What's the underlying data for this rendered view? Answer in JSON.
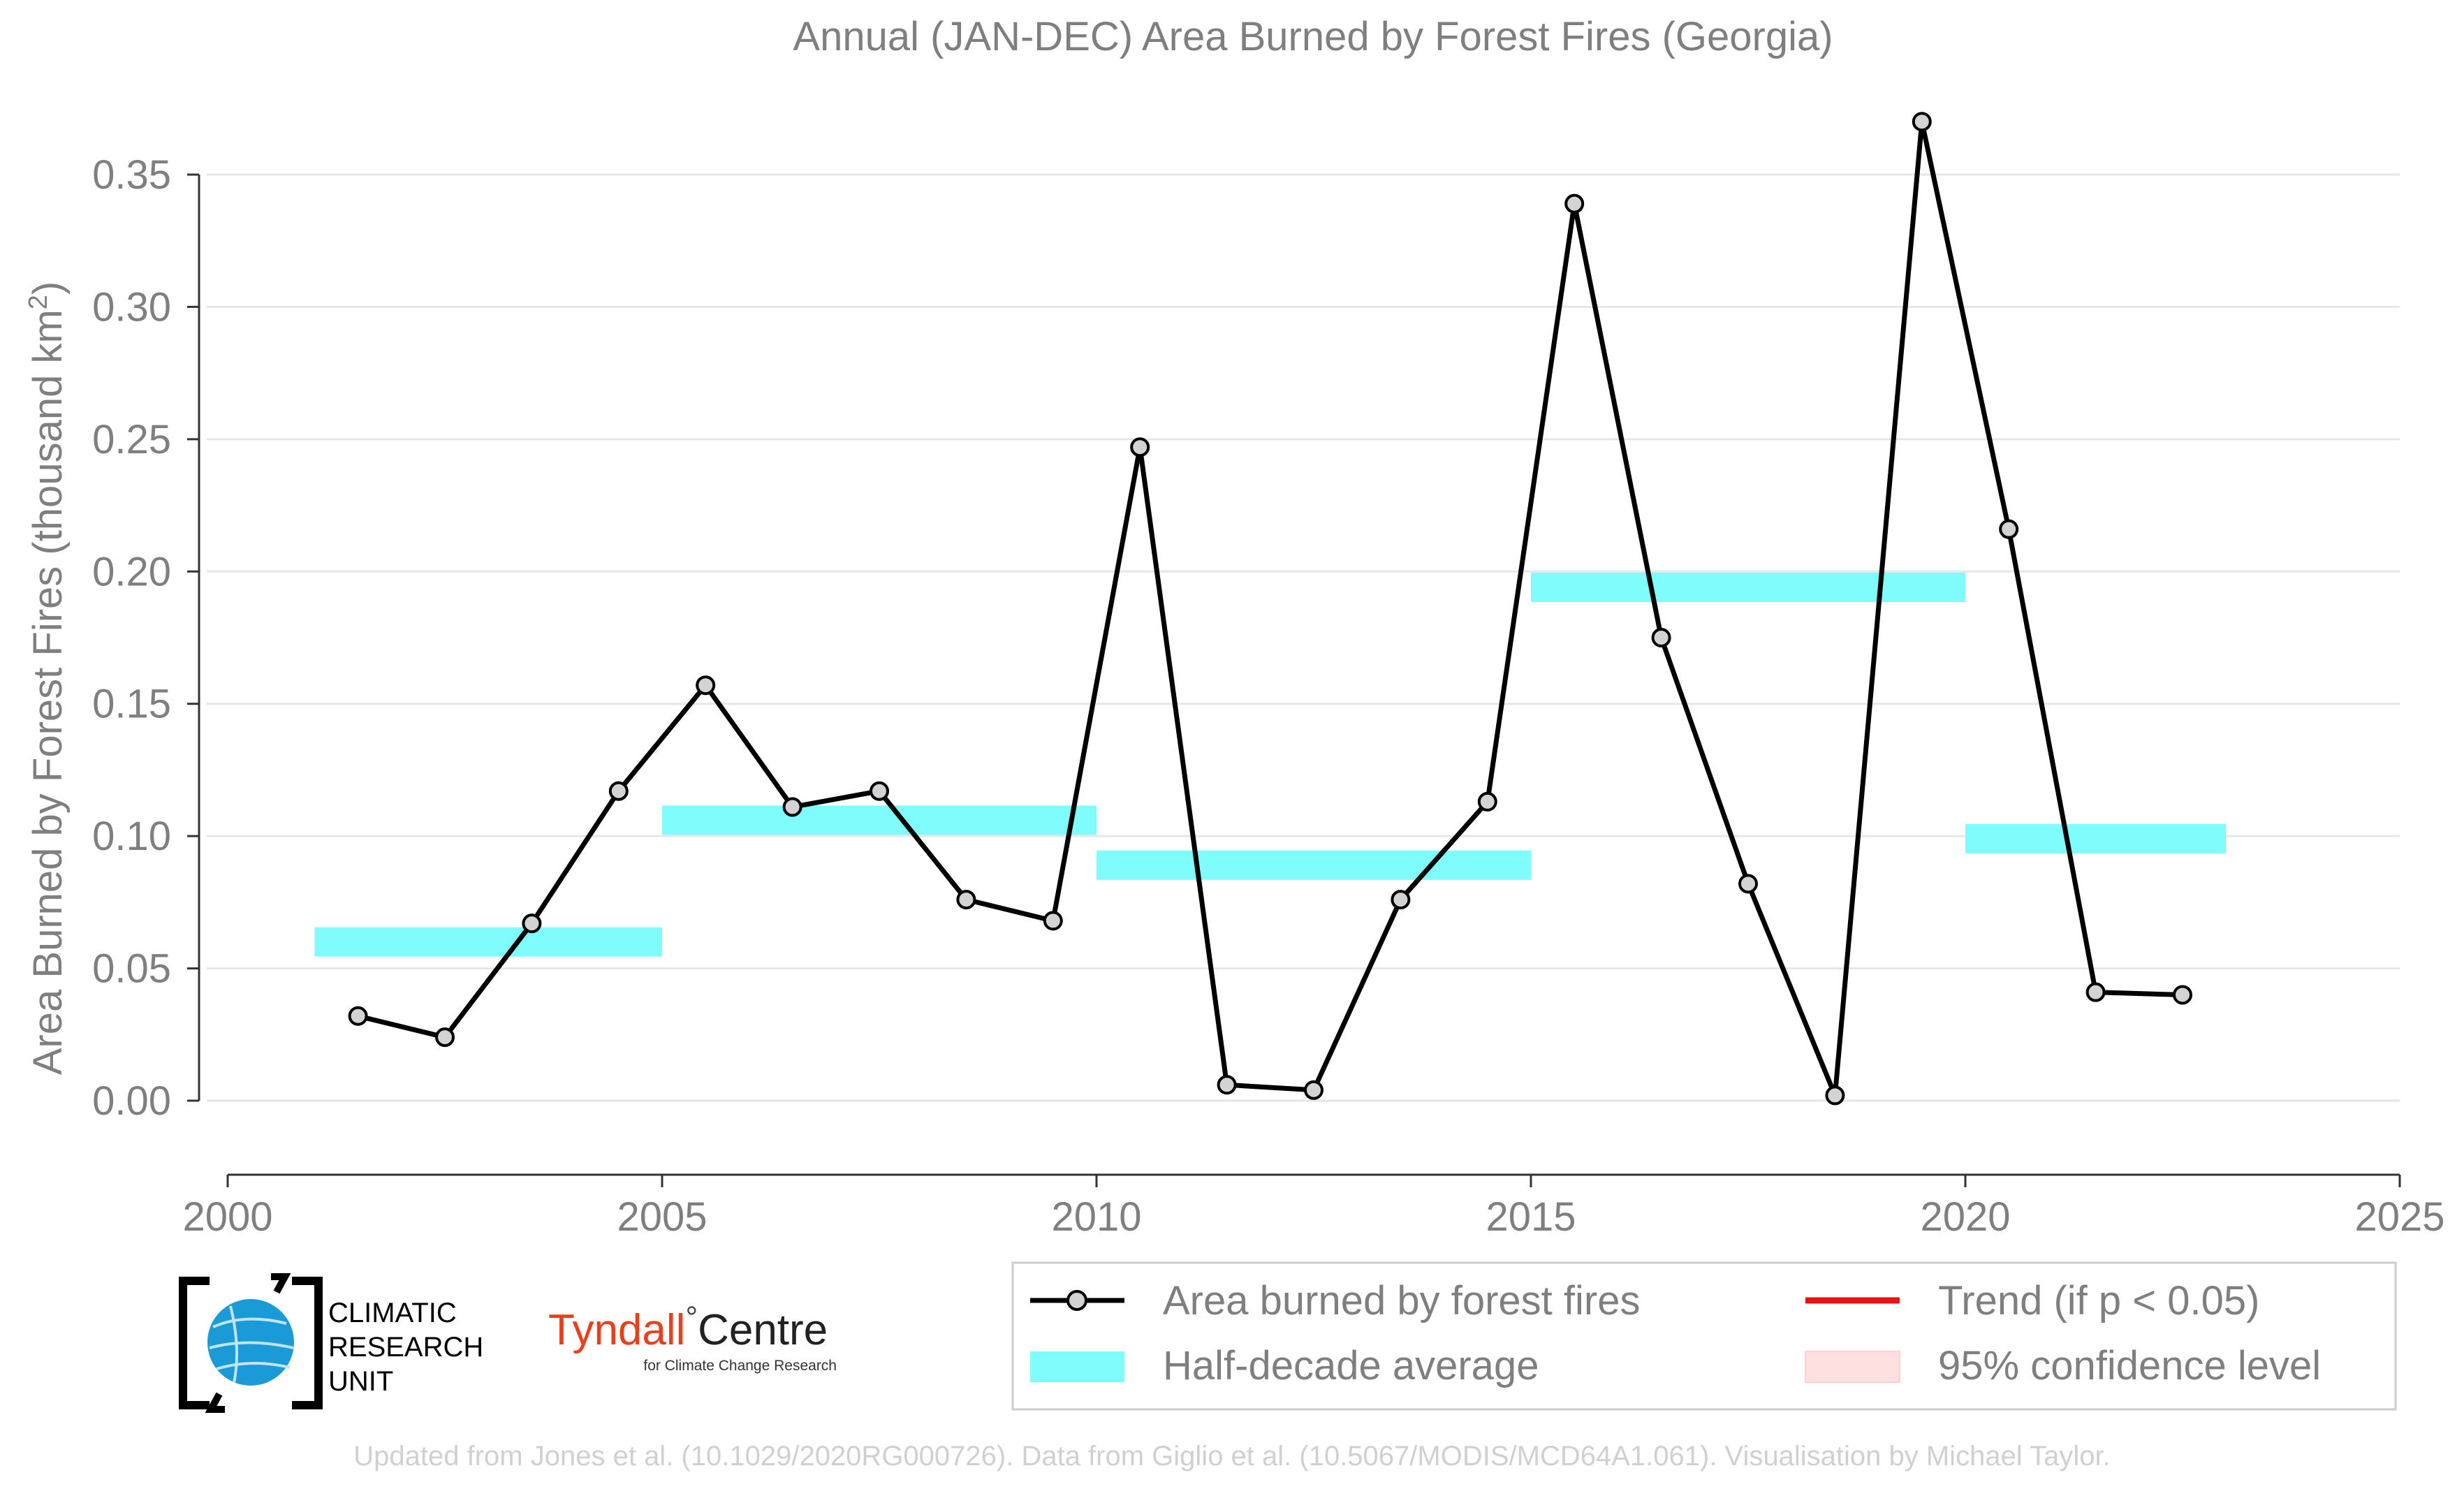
{
  "chart_data": {
    "type": "line",
    "title": "Annual (JAN-DEC) Area Burned by Forest Fires (Georgia)",
    "ylabel_main": "Area Burned by Forest Fires (thousand km",
    "ylabel_sup": "2",
    "ylabel_close": ")",
    "xlabel": "",
    "xlim": [
      2000,
      2025
    ],
    "ylim": [
      -0.027,
      0.375
    ],
    "x_ticks": [
      2000,
      2005,
      2010,
      2015,
      2020,
      2025
    ],
    "x_tick_labels": [
      "2000",
      "2005",
      "2010",
      "2015",
      "2020",
      "2025"
    ],
    "y_ticks": [
      0.0,
      0.05,
      0.1,
      0.15,
      0.2,
      0.25,
      0.3,
      0.35
    ],
    "y_tick_labels": [
      "0.00",
      "0.05",
      "0.10",
      "0.15",
      "0.20",
      "0.25",
      "0.30",
      "0.35"
    ],
    "grid": true,
    "series": [
      {
        "name": "Area burned by forest fires",
        "color": "#000000",
        "marker_fill": "#d3d3d3",
        "x": [
          2001.5,
          2002.5,
          2003.5,
          2004.5,
          2005.5,
          2006.5,
          2007.5,
          2008.5,
          2009.5,
          2010.5,
          2011.5,
          2012.5,
          2013.5,
          2014.5,
          2015.5,
          2016.5,
          2017.5,
          2018.5,
          2019.5,
          2020.5,
          2021.5,
          2022.5
        ],
        "values": [
          0.032,
          0.024,
          0.067,
          0.117,
          0.157,
          0.111,
          0.117,
          0.076,
          0.068,
          0.247,
          0.006,
          0.004,
          0.076,
          0.113,
          0.339,
          0.175,
          0.082,
          0.002,
          0.37,
          0.216,
          0.041,
          0.04
        ]
      }
    ],
    "half_decade_averages": {
      "name": "Half-decade average",
      "color": "#7ffcfc",
      "segments": [
        {
          "start": 2001,
          "end": 2005,
          "value": 0.06
        },
        {
          "start": 2005,
          "end": 2010,
          "value": 0.106
        },
        {
          "start": 2010,
          "end": 2015,
          "value": 0.089
        },
        {
          "start": 2015,
          "end": 2020,
          "value": 0.194
        },
        {
          "start": 2020,
          "end": 2023,
          "value": 0.099
        }
      ]
    },
    "legend": {
      "placement": "bottom-right",
      "items": [
        {
          "label": "Area burned by forest fires",
          "kind": "line-marker",
          "color": "#000000"
        },
        {
          "label": "Trend (if p < 0.05)",
          "kind": "line",
          "color": "#ee1111"
        },
        {
          "label": "Half-decade average",
          "kind": "band",
          "color": "#7ffcfc"
        },
        {
          "label": "95% confidence level",
          "kind": "band",
          "color": "#ffe0e0"
        }
      ]
    }
  },
  "logos": {
    "cru_lines": [
      "CLIMATIC",
      "RESEARCH",
      "UNIT"
    ],
    "tyndall_name": "Tyndall",
    "tyndall_degree": "°",
    "tyndall_centre": "Centre",
    "tyndall_sub": "for Climate Change Research"
  },
  "footer": "Updated from Jones et al. (10.1029/2020RG000726). Data from Giglio et al. (10.5067/MODIS/MCD64A1.061). Visualisation by Michael Taylor.",
  "colors": {
    "text_grey": "#7f7f7f",
    "grid": "#e6e6e6",
    "footer": "#d0d0d0",
    "tyndall_red": "#e8401c",
    "cru_blue": "#1a9ad6"
  }
}
